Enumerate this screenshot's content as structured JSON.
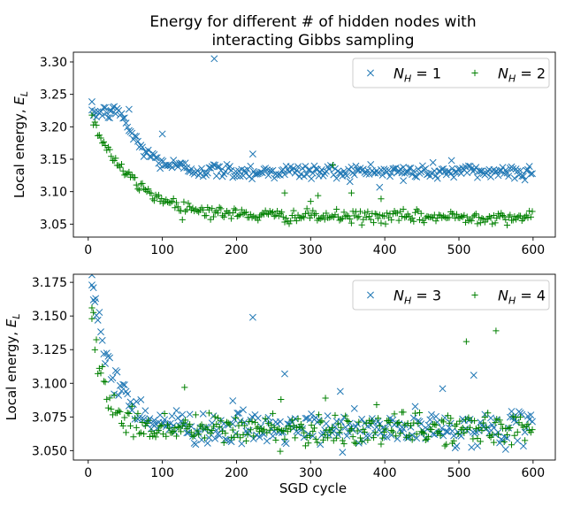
{
  "figure": {
    "title_line1": "Energy for different # of hidden nodes with",
    "title_line2": "interacting Gibbs sampling",
    "xlabel": "SGD cycle"
  },
  "colors": {
    "blue": "#1f77b4",
    "green": "#008000"
  },
  "chart_data": [
    {
      "type": "scatter",
      "title": "Energy for different # of hidden nodes with interacting Gibbs sampling",
      "xlabel": "",
      "ylabel": "Local energy, E_L",
      "ylabel_main": "Local energy, ",
      "ylabel_sym": "E",
      "ylabel_sub": "L",
      "xlim": [
        -20,
        630
      ],
      "ylim": [
        3.03,
        3.315
      ],
      "xticks": [
        0,
        100,
        200,
        300,
        400,
        500,
        600
      ],
      "yticks": [
        3.05,
        3.1,
        3.15,
        3.2,
        3.25,
        3.3
      ],
      "ytick_labels": [
        "3.05",
        "3.10",
        "3.15",
        "3.20",
        "3.25",
        "3.30"
      ],
      "legend_position": "top-right",
      "series": [
        {
          "name": "N_H = 1",
          "sym": "N",
          "sub": "H",
          "eq": " = 1",
          "marker": "x",
          "color": "#1f77b4",
          "model": {
            "x_start": 5,
            "x_end": 600,
            "step": 2,
            "start": 3.222,
            "plateau": 3.131,
            "tau": 30,
            "noise": 0.006,
            "decay_after": 40
          },
          "outliers": [
            [
              5,
              3.226
            ],
            [
              30,
              3.224
            ],
            [
              55,
              3.227
            ],
            [
              100,
              3.189
            ],
            [
              170,
              3.305
            ],
            [
              222,
              3.158
            ],
            [
              425,
              3.117
            ],
            [
              490,
              3.148
            ]
          ]
        },
        {
          "name": "N_H = 2",
          "sym": "N",
          "sub": "H",
          "eq": " = 2",
          "marker": "+",
          "color": "#008000",
          "model": {
            "x_start": 5,
            "x_end": 600,
            "step": 2,
            "start": 3.215,
            "plateau": 3.061,
            "tau": 55,
            "noise": 0.005,
            "decay_after": 0
          },
          "outliers": [
            [
              265,
              3.098
            ],
            [
              310,
              3.094
            ],
            [
              355,
              3.098
            ],
            [
              300,
              3.085
            ],
            [
              395,
              3.089
            ],
            [
              330,
              3.141
            ]
          ]
        }
      ]
    },
    {
      "type": "scatter",
      "xlabel": "SGD cycle",
      "ylabel": "Local energy, E_L",
      "ylabel_main": "Local energy, ",
      "ylabel_sym": "E",
      "ylabel_sub": "L",
      "xlim": [
        -20,
        630
      ],
      "ylim": [
        3.043,
        3.181
      ],
      "xticks": [
        0,
        100,
        200,
        300,
        400,
        500,
        600
      ],
      "yticks": [
        3.05,
        3.075,
        3.1,
        3.125,
        3.15,
        3.175
      ],
      "ytick_labels": [
        "3.050",
        "3.075",
        "3.100",
        "3.125",
        "3.150",
        "3.175"
      ],
      "legend_position": "top-right",
      "series": [
        {
          "name": "N_H = 3",
          "sym": "N",
          "sub": "H",
          "eq": " = 3",
          "marker": "x",
          "color": "#1f77b4",
          "model": {
            "x_start": 5,
            "x_end": 600,
            "step": 2,
            "start": 3.168,
            "plateau": 3.066,
            "tau": 32,
            "noise": 0.006,
            "decay_after": 0
          },
          "outliers": [
            [
              5,
              3.173
            ],
            [
              7,
              3.171
            ],
            [
              10,
              3.163
            ],
            [
              222,
              3.149
            ],
            [
              265,
              3.107
            ],
            [
              520,
              3.106
            ],
            [
              478,
              3.096
            ],
            [
              340,
              3.094
            ],
            [
              195,
              3.087
            ]
          ]
        },
        {
          "name": "N_H = 4",
          "sym": "N",
          "sub": "H",
          "eq": " = 4",
          "marker": "+",
          "color": "#008000",
          "model": {
            "x_start": 5,
            "x_end": 600,
            "step": 2,
            "start": 3.152,
            "plateau": 3.066,
            "tau": 18,
            "noise": 0.006,
            "decay_after": 0
          },
          "outliers": [
            [
              5,
              3.156
            ],
            [
              550,
              3.139
            ],
            [
              510,
              3.131
            ],
            [
              130,
              3.097
            ],
            [
              260,
              3.088
            ],
            [
              320,
              3.089
            ]
          ]
        }
      ]
    }
  ]
}
